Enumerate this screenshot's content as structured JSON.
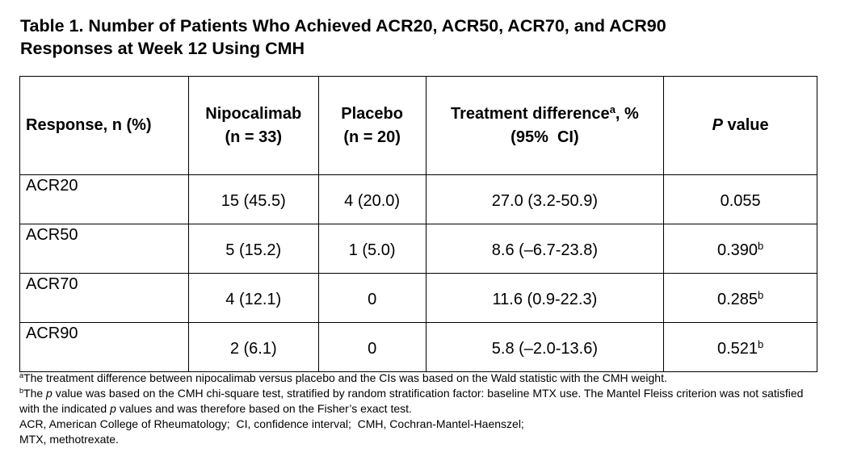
{
  "title": "Table 1. Number of Patients Who Achieved ACR20, ACR50, ACR70, and ACR90 Responses at Week 12 Using CMH",
  "table": {
    "header": [
      "Response, n (%)",
      [
        "Nipocalimab",
        "(n = 33)"
      ],
      [
        "Placebo",
        "(n = 20)"
      ],
      [
        [
          "Treatment difference",
          "a",
          ", %"
        ],
        "(95%  CI)"
      ],
      [
        "P",
        "value"
      ]
    ],
    "rows": [
      [
        "ACR20",
        "15 (45.5)",
        "4 (20.0)",
        "27.0 (3.2-50.9)",
        [
          "0.055"
        ]
      ],
      [
        "ACR50",
        "5 (15.2)",
        "1 (5.0)",
        "8.6 (–6.7-23.8)",
        [
          "0.390",
          "b"
        ]
      ],
      [
        "ACR70",
        "4 (12.1)",
        "0",
        "11.6 (0.9-22.3)",
        [
          "0.285",
          "b"
        ]
      ],
      [
        "ACR90",
        "2 (6.1)",
        "0",
        "5.8 (–2.0-13.6)",
        [
          "0.521",
          "b"
        ]
      ]
    ]
  },
  "footnotes": [
    [
      "a",
      "The treatment difference between nipocalimab versus placebo and the CIs was based on the Wald statistic with the CMH weight."
    ],
    [
      "b",
      "The ",
      "p",
      " value was based on the CMH chi-square test, stratified by random stratification factor: baseline MTX use. The Mantel Fleiss criterion was not satisfied with the indicated ",
      "p",
      " values and was therefore based on the Fisher’s exact test."
    ],
    [
      "ACR, American College of Rheumatology;  CI, confidence interval;  CMH, Cochran-Mantel-Haenszel;"
    ],
    [
      "MTX, methotrexate."
    ]
  ]
}
